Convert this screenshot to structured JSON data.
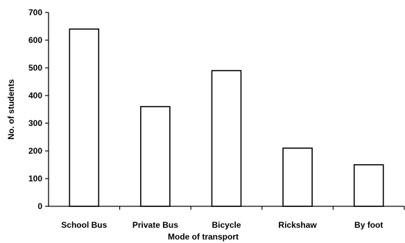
{
  "chart_data": {
    "type": "bar",
    "title": "",
    "categories": [
      "School Bus",
      "Private Bus",
      "Bicycle",
      "Rickshaw",
      "By foot"
    ],
    "values": [
      640,
      360,
      490,
      210,
      150
    ],
    "xlabel": "Mode of transport",
    "ylabel": "No. of students",
    "ylim": [
      0,
      700
    ],
    "yticks": [
      "0",
      "100",
      "200",
      "300",
      "400",
      "500",
      "600",
      "700"
    ],
    "grid": false,
    "colors": {
      "bar_fill": "#ffffff",
      "bar_stroke": "#000000",
      "axis": "#000000"
    }
  }
}
